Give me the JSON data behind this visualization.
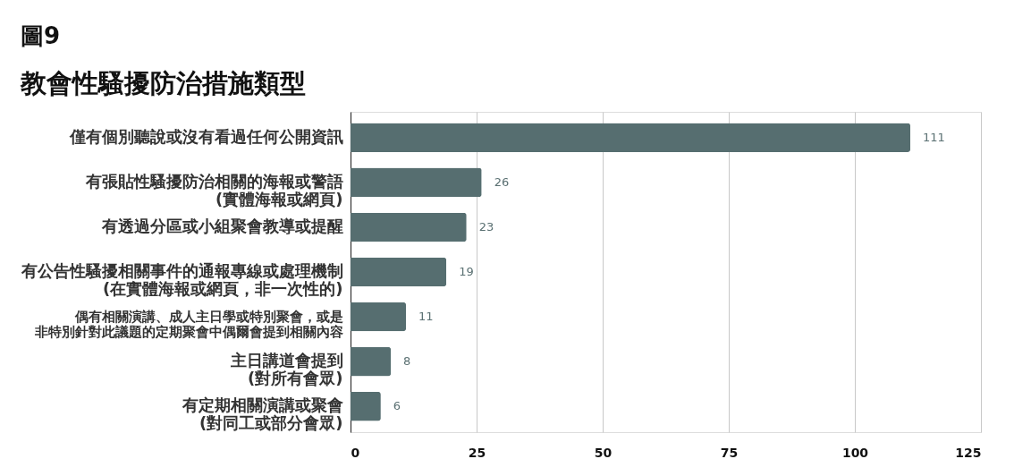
{
  "chart_data": {
    "type": "bar",
    "orientation": "horizontal",
    "title": "圖9",
    "subtitle": "教會性騷擾防治措施類型",
    "categories": [
      "僅有個別聽說或沒有看過任何公開資訊",
      "有張貼性騷擾防治相關的海報或警語\n(實體海報或網頁)",
      "有透過分區或小組聚會教導或提醒",
      "有公告性騷擾相關事件的通報專線或處理機制\n(在實體海報或網頁，非一次性的)",
      "偶有相關演講、成人主日學或特別聚會，或是非特別針對此議題的定期聚會中偶爾會提到相關內容",
      "主日講道會提到\n(對所有會眾)",
      "有定期相關演講或聚會\n(對同工或部分會眾)"
    ],
    "values": [
      111,
      26,
      23,
      19,
      11,
      8,
      6
    ],
    "color": "#566e70",
    "xlim": [
      0,
      125
    ],
    "xticks": [
      0,
      25,
      50,
      75,
      100,
      125
    ],
    "grid": "x",
    "data_labels": true
  }
}
